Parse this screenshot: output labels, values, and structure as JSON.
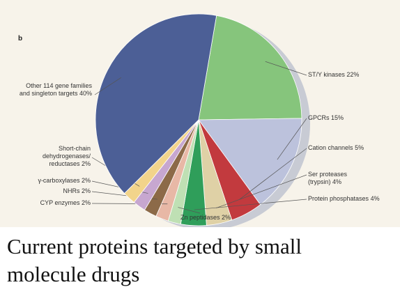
{
  "chart_data": {
    "type": "pie",
    "panel_label": "b",
    "title": "Current proteins targeted by small molecule drugs",
    "categories": [
      "ST/Y kinases",
      "GPCRs",
      "Cation channels",
      "Ser proteases (trypsin)",
      "Protein phosphatases",
      "Zn peptidases",
      "CYP enzymes",
      "NHRs",
      "γ-carboxylases",
      "Short-chain dehydrogenases/ reductases",
      "Other 114 gene families and singleton targets"
    ],
    "values": [
      22,
      15,
      5,
      4,
      4,
      2,
      2,
      2,
      2,
      2,
      40
    ],
    "value_labels": [
      "22%",
      "15%",
      "5%",
      "4%",
      "4%",
      "2%",
      "2%",
      "2%",
      "2%",
      "2%",
      "40%"
    ],
    "colors": [
      "#86c57c",
      "#bcc2dc",
      "#c23a3e",
      "#dfd1a6",
      "#2f9e5a",
      "#bfe0b4",
      "#e8b8a6",
      "#8c6a48",
      "#c7a7d0",
      "#f2d48b",
      "#4c5f96"
    ]
  }
}
